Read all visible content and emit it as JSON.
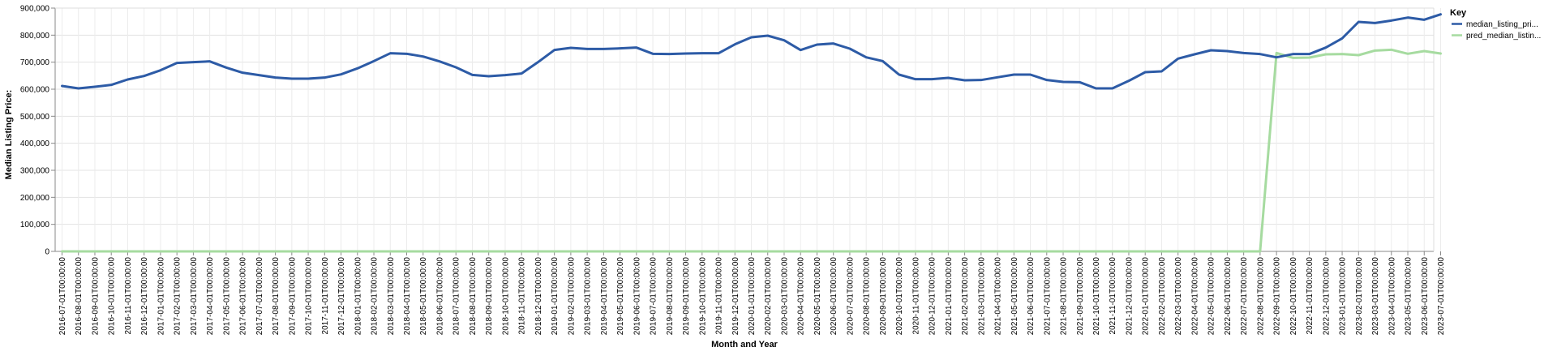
{
  "chart_data": {
    "type": "line",
    "xlabel": "Month and Year",
    "ylabel": "Median Listing Price:",
    "ylim": [
      0,
      900000
    ],
    "y_ticks": [
      "0",
      "100,000",
      "200,000",
      "300,000",
      "400,000",
      "500,000",
      "600,000",
      "700,000",
      "800,000",
      "900,000"
    ],
    "y_tick_values": [
      0,
      100000,
      200000,
      300000,
      400000,
      500000,
      600000,
      700000,
      800000,
      900000
    ],
    "grid": true,
    "legend_title": "Key",
    "legend_position": "top-right",
    "categories": [
      "2016-07-01T00:00:00",
      "2016-08-01T00:00:00",
      "2016-09-01T00:00:00",
      "2016-10-01T00:00:00",
      "2016-11-01T00:00:00",
      "2016-12-01T00:00:00",
      "2017-01-01T00:00:00",
      "2017-02-01T00:00:00",
      "2017-03-01T00:00:00",
      "2017-04-01T00:00:00",
      "2017-05-01T00:00:00",
      "2017-06-01T00:00:00",
      "2017-07-01T00:00:00",
      "2017-08-01T00:00:00",
      "2017-09-01T00:00:00",
      "2017-10-01T00:00:00",
      "2017-11-01T00:00:00",
      "2017-12-01T00:00:00",
      "2018-01-01T00:00:00",
      "2018-02-01T00:00:00",
      "2018-03-01T00:00:00",
      "2018-04-01T00:00:00",
      "2018-05-01T00:00:00",
      "2018-06-01T00:00:00",
      "2018-07-01T00:00:00",
      "2018-08-01T00:00:00",
      "2018-09-01T00:00:00",
      "2018-10-01T00:00:00",
      "2018-11-01T00:00:00",
      "2018-12-01T00:00:00",
      "2019-01-01T00:00:00",
      "2019-02-01T00:00:00",
      "2019-03-01T00:00:00",
      "2019-04-01T00:00:00",
      "2019-05-01T00:00:00",
      "2019-06-01T00:00:00",
      "2019-07-01T00:00:00",
      "2019-08-01T00:00:00",
      "2019-09-01T00:00:00",
      "2019-10-01T00:00:00",
      "2019-11-01T00:00:00",
      "2019-12-01T00:00:00",
      "2020-01-01T00:00:00",
      "2020-02-01T00:00:00",
      "2020-03-01T00:00:00",
      "2020-04-01T00:00:00",
      "2020-05-01T00:00:00",
      "2020-06-01T00:00:00",
      "2020-07-01T00:00:00",
      "2020-08-01T00:00:00",
      "2020-09-01T00:00:00",
      "2020-10-01T00:00:00",
      "2020-11-01T00:00:00",
      "2020-12-01T00:00:00",
      "2021-01-01T00:00:00",
      "2021-02-01T00:00:00",
      "2021-03-01T00:00:00",
      "2021-04-01T00:00:00",
      "2021-05-01T00:00:00",
      "2021-06-01T00:00:00",
      "2021-07-01T00:00:00",
      "2021-08-01T00:00:00",
      "2021-09-01T00:00:00",
      "2021-10-01T00:00:00",
      "2021-11-01T00:00:00",
      "2021-12-01T00:00:00",
      "2022-01-01T00:00:00",
      "2022-02-01T00:00:00",
      "2022-03-01T00:00:00",
      "2022-04-01T00:00:00",
      "2022-05-01T00:00:00",
      "2022-06-01T00:00:00",
      "2022-07-01T00:00:00",
      "2022-08-01T00:00:00",
      "2022-09-01T00:00:00",
      "2022-10-01T00:00:00",
      "2022-11-01T00:00:00",
      "2022-12-01T00:00:00",
      "2023-01-01T00:00:00",
      "2023-02-01T00:00:00",
      "2023-03-01T00:00:00",
      "2023-04-01T00:00:00",
      "2023-05-01T00:00:00",
      "2023-06-01T00:00:00",
      "2023-07-01T00:00:00"
    ],
    "series": [
      {
        "name": "median_listing_pri...",
        "color": "#2d5ba6",
        "values": [
          612000,
          603000,
          609000,
          616000,
          636000,
          649000,
          670000,
          697000,
          700000,
          703000,
          680000,
          661000,
          652000,
          643000,
          639000,
          639000,
          643000,
          655000,
          677000,
          704000,
          733000,
          731000,
          721000,
          703000,
          681000,
          653000,
          648000,
          652000,
          658000,
          700000,
          745000,
          753000,
          749000,
          749000,
          751000,
          754000,
          731000,
          730000,
          732000,
          733000,
          733000,
          766000,
          792000,
          798000,
          781000,
          745000,
          765000,
          769000,
          750000,
          718000,
          704000,
          654000,
          637000,
          637000,
          642000,
          633000,
          634000,
          644000,
          654000,
          654000,
          634000,
          627000,
          626000,
          603000,
          603000,
          631000,
          663000,
          666000,
          713000,
          729000,
          744000,
          741000,
          734000,
          730000,
          718000,
          730000,
          730000,
          754000,
          788000,
          849000,
          845000,
          854000,
          865000,
          857000,
          877000
        ]
      },
      {
        "name": "pred_median_listin...",
        "color": "#a6dba0",
        "values": [
          0,
          0,
          0,
          0,
          0,
          0,
          0,
          0,
          0,
          0,
          0,
          0,
          0,
          0,
          0,
          0,
          0,
          0,
          0,
          0,
          0,
          0,
          0,
          0,
          0,
          0,
          0,
          0,
          0,
          0,
          0,
          0,
          0,
          0,
          0,
          0,
          0,
          0,
          0,
          0,
          0,
          0,
          0,
          0,
          0,
          0,
          0,
          0,
          0,
          0,
          0,
          0,
          0,
          0,
          0,
          0,
          0,
          0,
          0,
          0,
          0,
          0,
          0,
          0,
          0,
          0,
          0,
          0,
          0,
          0,
          0,
          0,
          0,
          0,
          734000,
          716000,
          717000,
          729000,
          730000,
          726000,
          743000,
          746000,
          731000,
          741000,
          732000
        ]
      }
    ]
  }
}
